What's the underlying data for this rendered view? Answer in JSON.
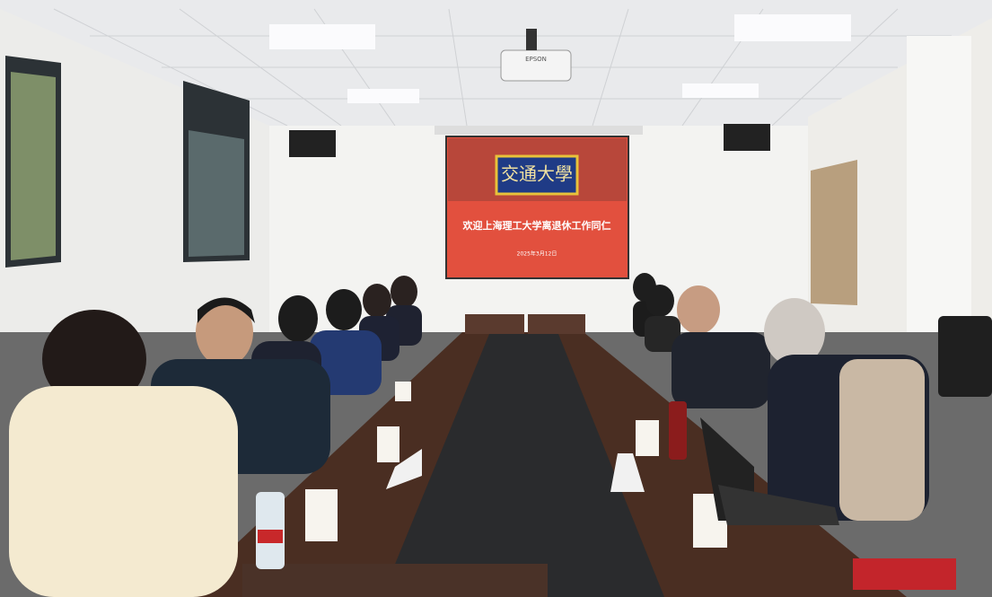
{
  "projector": {
    "brand": "EPSON"
  },
  "screen": {
    "logo": "交通大學",
    "headline": "欢迎上海理工大学离退休工作同仁",
    "date": "2025年3月12日"
  }
}
